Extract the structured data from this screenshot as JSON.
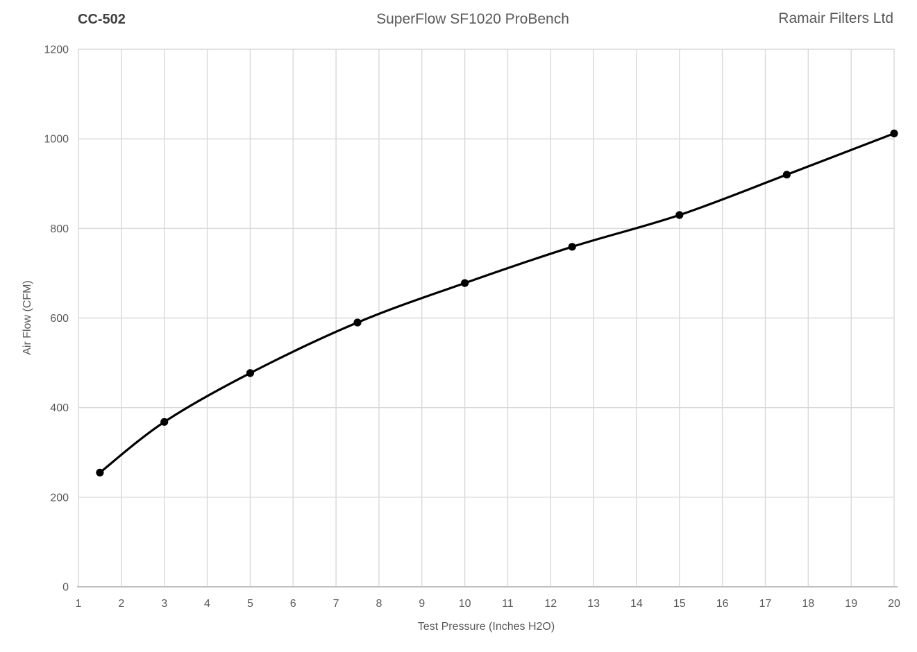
{
  "header": {
    "left_title": "CC-502",
    "center_title": "SuperFlow SF1020 ProBench",
    "right_title": "Ramair Filters Ltd"
  },
  "colors": {
    "background": "#ffffff",
    "gridline": "#d9d9d9",
    "axis_line": "#bfbfbf",
    "tick_label_text": "#595959",
    "axis_title_text": "#595959",
    "series": "#000000"
  },
  "chart_data": {
    "type": "line",
    "title": "SuperFlow SF1020 ProBench",
    "xlabel": "Test Pressure (Inches H2O)",
    "ylabel": "Air Flow (CFM)",
    "xlim": [
      1,
      20
    ],
    "ylim": [
      0,
      1200
    ],
    "x_ticks": [
      1,
      2,
      3,
      4,
      5,
      6,
      7,
      8,
      9,
      10,
      11,
      12,
      13,
      14,
      15,
      16,
      17,
      18,
      19,
      20
    ],
    "y_ticks": [
      0,
      200,
      400,
      600,
      800,
      1000,
      1200
    ],
    "grid": true,
    "legend": false,
    "marker": "circle",
    "line_smooth": true,
    "series": [
      {
        "name": "CC-502",
        "x": [
          1.5,
          3,
          5,
          7.5,
          10,
          12.5,
          15,
          17.5,
          20
        ],
        "y": [
          255,
          368,
          477,
          590,
          678,
          759,
          830,
          920,
          1012
        ]
      }
    ]
  }
}
